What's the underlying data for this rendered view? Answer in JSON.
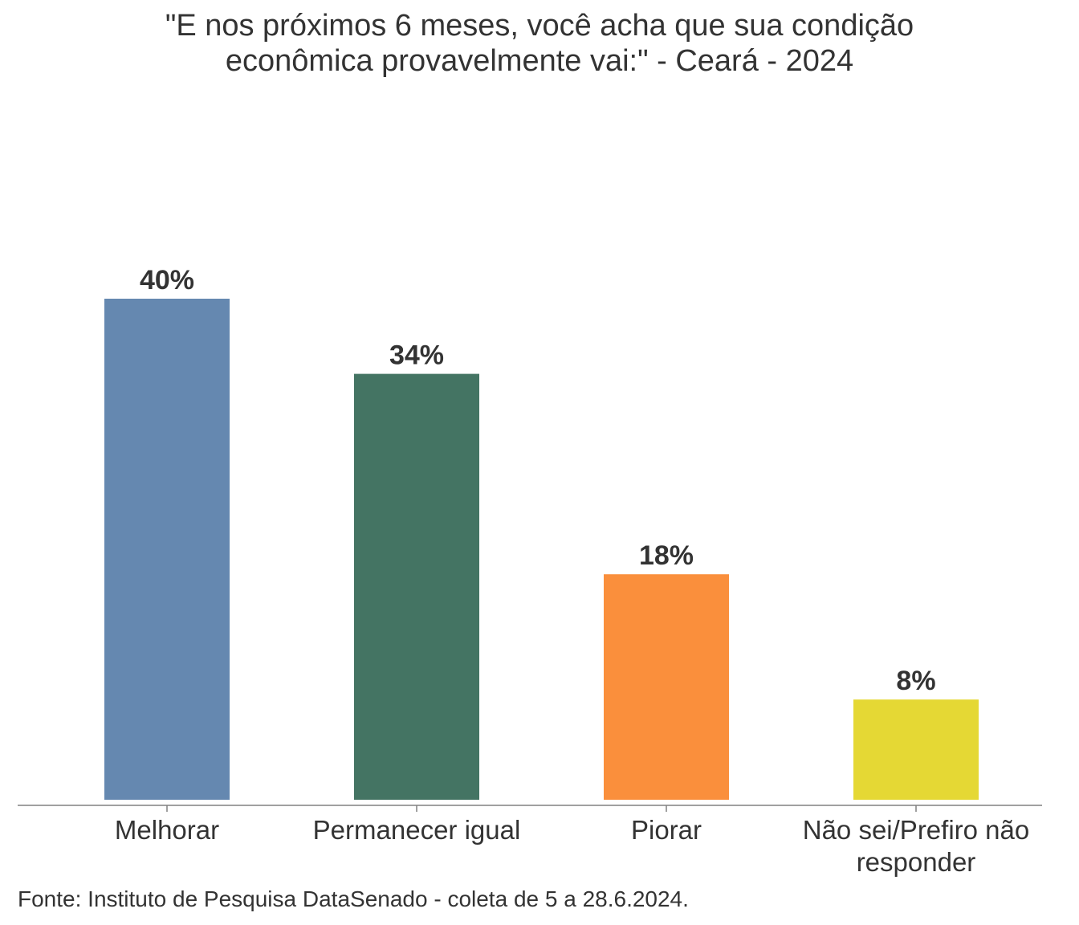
{
  "chart_data": {
    "type": "bar",
    "title": [
      "\"E nos próximos 6 meses, você acha que sua condição",
      "econômica provavelmente vai:\" - Ceará - 2024"
    ],
    "categories": [
      [
        "Melhorar"
      ],
      [
        "Permanecer igual"
      ],
      [
        "Piorar"
      ],
      [
        "Não sei/Prefiro não",
        "responder"
      ]
    ],
    "values": [
      40,
      34,
      18,
      8
    ],
    "value_labels": [
      "40%",
      "34%",
      "18%",
      "8%"
    ],
    "colors": [
      "#6588b0",
      "#447463",
      "#fa8f3c",
      "#e5d834"
    ],
    "ylim": [
      0,
      40
    ],
    "grid": false,
    "legend": "none",
    "source": "Fonte: Instituto de Pesquisa DataSenado - coleta de 5 a 28.6.2024."
  }
}
